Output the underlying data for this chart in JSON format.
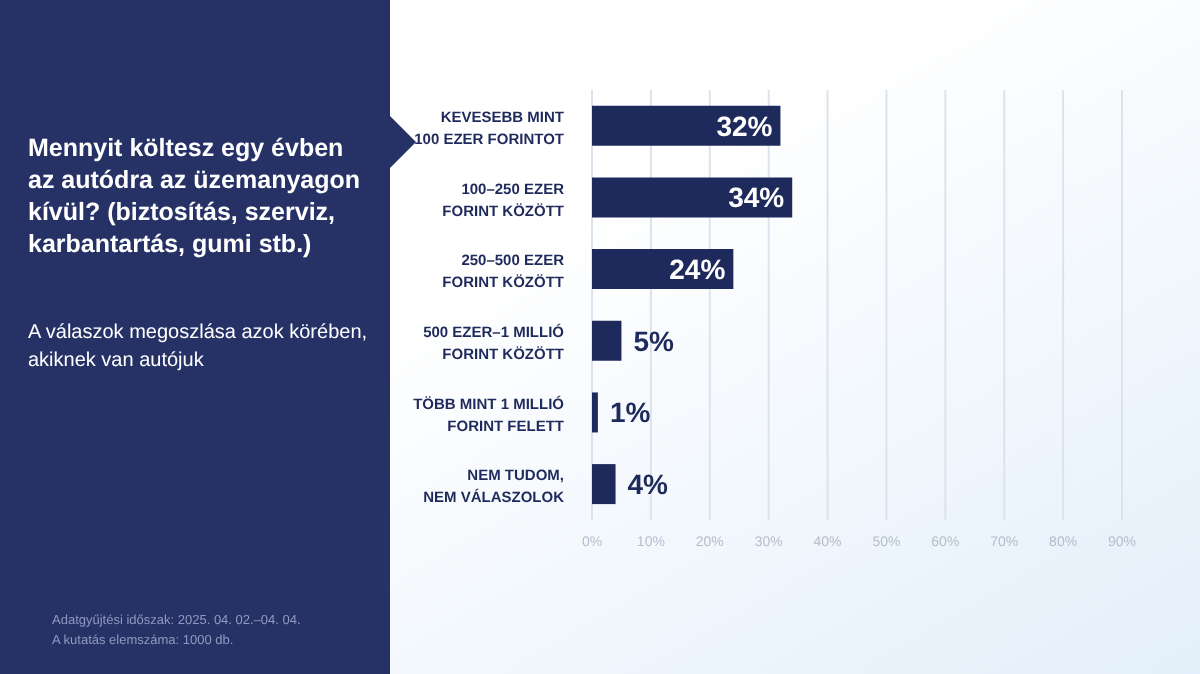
{
  "chart_data": {
    "type": "bar",
    "orientation": "horizontal",
    "title": "Mennyit költesz egy évben az autódra az üzemanyagon kívül? (biztosítás, szerviz, karbantartás, gumi stb.)",
    "subtitle": "A válaszok megoszlása azok körében, akiknek van autójuk",
    "annotations": [
      "Adatgyűjtési időszak: 2025. 04. 02.–04. 04.",
      "A kutatás elemszáma: 1000 db."
    ],
    "categories": [
      "KEVESEBB MINT 100 EZER FORINTOT",
      "100–250 EZER FORINT KÖZÖTT",
      "250–500 EZER FORINT KÖZÖTT",
      "500 EZER–1 MILLIÓ FORINT KÖZÖTT",
      "TÖBB MINT 1 MILLIÓ FORINT FELETT",
      "NEM TUDOM, NEM VÁLASZOLOK"
    ],
    "values": [
      32,
      34,
      24,
      5,
      1,
      4
    ],
    "value_labels": [
      "32%",
      "34%",
      "24%",
      "5%",
      "1%",
      "4%"
    ],
    "color": "#1f2a5c",
    "xlim": [
      0,
      90
    ],
    "xticks": [
      {
        "value": 0,
        "label": "0%"
      },
      {
        "value": 10,
        "label": "10%"
      },
      {
        "value": 20,
        "label": "20%"
      },
      {
        "value": 30,
        "label": "30%"
      },
      {
        "value": 40,
        "label": "40%"
      },
      {
        "value": 50,
        "label": "50%"
      },
      {
        "value": 60,
        "label": "60%"
      },
      {
        "value": 70,
        "label": "70%"
      },
      {
        "value": 80,
        "label": "80%"
      },
      {
        "value": 90,
        "label": "90%"
      }
    ],
    "grid": "x"
  }
}
